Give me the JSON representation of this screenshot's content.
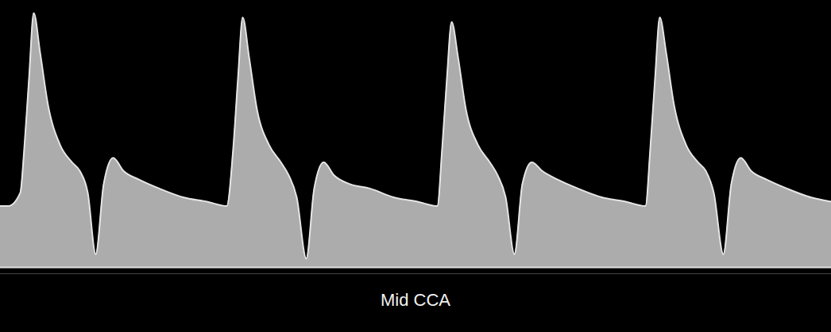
{
  "chart_data": {
    "type": "area",
    "title": "Mid CCA",
    "x": [
      0,
      10,
      25,
      30,
      36,
      42,
      50,
      60,
      75,
      90,
      100,
      110,
      120,
      130,
      142,
      155,
      175,
      200,
      230,
      260,
      285,
      293,
      299,
      305,
      313,
      323,
      338,
      353,
      363,
      373,
      385,
      395,
      407,
      420,
      440,
      465,
      495,
      525,
      550,
      556,
      562,
      568,
      576,
      586,
      601,
      616,
      626,
      636,
      647,
      657,
      669,
      682,
      702,
      727,
      757,
      787,
      812,
      818,
      824,
      830,
      838,
      848,
      863,
      878,
      888,
      898,
      910,
      920,
      932,
      945,
      965,
      990,
      1020,
      1046
    ],
    "values": [
      70,
      70,
      85,
      135,
      215,
      290,
      245,
      185,
      140,
      120,
      110,
      85,
      15,
      95,
      125,
      110,
      100,
      90,
      80,
      75,
      70,
      135,
      215,
      285,
      240,
      180,
      140,
      120,
      105,
      80,
      10,
      90,
      120,
      105,
      95,
      90,
      80,
      75,
      70,
      135,
      215,
      280,
      240,
      180,
      140,
      120,
      105,
      80,
      15,
      95,
      120,
      110,
      100,
      90,
      80,
      75,
      70,
      135,
      215,
      285,
      245,
      185,
      140,
      120,
      110,
      85,
      15,
      95,
      125,
      110,
      100,
      90,
      80,
      75
    ],
    "xlim": [
      0,
      1046
    ],
    "ylim": [
      0,
      300
    ],
    "tick_labels": false,
    "color": "#e6e6e6"
  }
}
